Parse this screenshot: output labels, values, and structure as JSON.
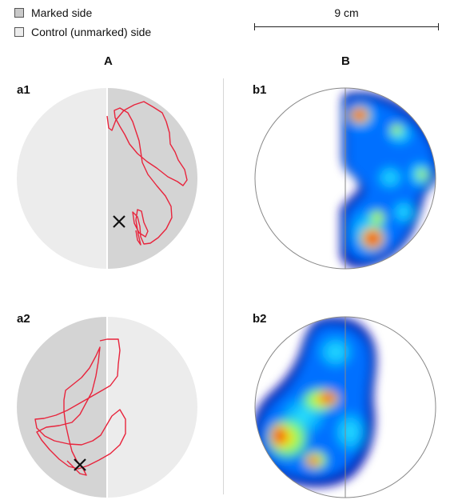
{
  "legend": {
    "marked_label": "Marked side",
    "control_label": "Control (unmarked) side"
  },
  "scale": {
    "label": "9 cm"
  },
  "columns": {
    "a": "A",
    "b": "B"
  },
  "panels": {
    "a1": "a1",
    "a2": "a2",
    "b1": "b1",
    "b2": "b2"
  },
  "colors": {
    "marked": "#c9c9c9",
    "control": "#ececec",
    "track": "#e8243c",
    "heat_low": "#0000c8",
    "heat_high": "#c80000"
  },
  "icons": {
    "start_marker": "cross-icon"
  }
}
